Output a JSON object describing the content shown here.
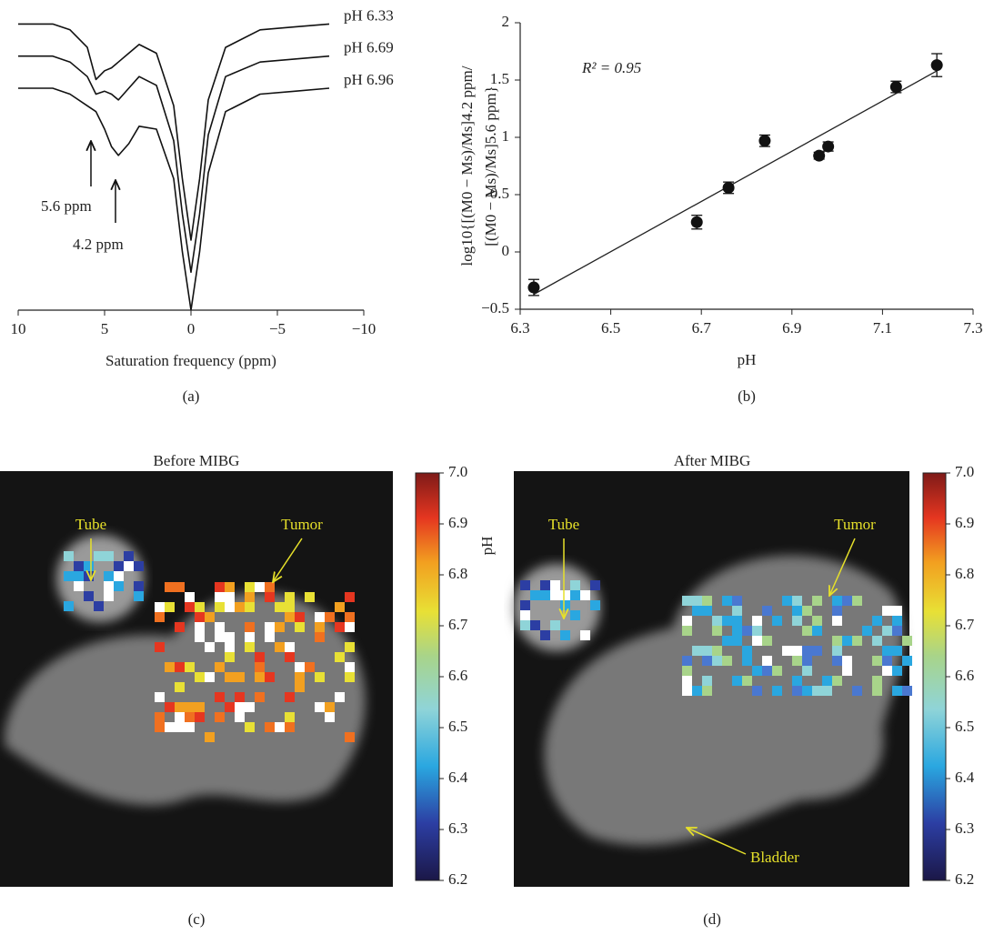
{
  "chart_data": [
    {
      "type": "line",
      "xlabel": "Saturation frequency (ppm)",
      "caption": "(a)",
      "xlim": [
        10,
        -10
      ],
      "ylim": [
        0,
        1
      ],
      "xticks": [
        10,
        5,
        0,
        {
          "value": -5,
          "label": "−5"
        },
        {
          "value": -10,
          "label": "−10"
        }
      ],
      "x": [
        10,
        8,
        7,
        6,
        5.5,
        5,
        4.6,
        4.2,
        3.6,
        3,
        2,
        1,
        0.5,
        0,
        -0.5,
        -1,
        -2,
        -4,
        -6,
        -8
      ],
      "series": [
        {
          "name": "pH 6.33",
          "color": "#111111",
          "values": [
            0.98,
            0.98,
            0.96,
            0.9,
            0.79,
            0.82,
            0.83,
            0.85,
            0.88,
            0.91,
            0.88,
            0.7,
            0.45,
            0.24,
            0.45,
            0.72,
            0.9,
            0.96,
            0.97,
            0.98
          ]
        },
        {
          "name": "pH 6.69",
          "color": "#111111",
          "values": [
            0.87,
            0.87,
            0.85,
            0.8,
            0.74,
            0.75,
            0.74,
            0.72,
            0.76,
            0.8,
            0.77,
            0.58,
            0.33,
            0.13,
            0.33,
            0.6,
            0.8,
            0.85,
            0.86,
            0.87
          ]
        },
        {
          "name": "pH 6.96",
          "color": "#111111",
          "values": [
            0.76,
            0.76,
            0.74,
            0.7,
            0.68,
            0.62,
            0.56,
            0.53,
            0.57,
            0.63,
            0.62,
            0.45,
            0.2,
            0.0,
            0.2,
            0.47,
            0.68,
            0.74,
            0.75,
            0.76
          ]
        }
      ],
      "annotations": [
        "5.6 ppm",
        "4.2 ppm"
      ]
    },
    {
      "type": "scatter",
      "xlabel": "pH",
      "caption": "(b)",
      "ylabel": [
        "log10{[(M0 − Ms)/Ms]4.2 ppm/",
        "[(M0 − Ms)/Ms]5.6 ppm}"
      ],
      "annotation": "R² = 0.95",
      "xlim": [
        6.3,
        7.3
      ],
      "ylim": [
        -0.5,
        2
      ],
      "xticks": [
        6.3,
        6.5,
        6.7,
        6.9,
        7.1,
        7.3
      ],
      "yticks": [
        {
          "value": -0.5,
          "label": "−0.5"
        },
        0,
        0.5,
        1,
        1.5,
        2
      ],
      "x": [
        6.33,
        6.69,
        6.76,
        6.84,
        6.96,
        6.98,
        7.13,
        7.22
      ],
      "values": [
        -0.31,
        0.26,
        0.56,
        0.97,
        0.84,
        0.92,
        1.44,
        1.63
      ],
      "errors": [
        0.07,
        0.06,
        0.05,
        0.05,
        0.03,
        0.04,
        0.05,
        0.1
      ],
      "color": "#111111",
      "fit": {
        "x": [
          6.33,
          7.22
        ],
        "values": [
          -0.37,
          1.58
        ]
      }
    },
    {
      "type": "image",
      "title": "Before MIBG",
      "caption": "(c)",
      "colorbar_label": "pH",
      "clim": [
        6.2,
        7.0
      ],
      "cticks": [
        {
          "value": 7,
          "label": "7.0"
        },
        6.9,
        6.8,
        6.7,
        6.6,
        6.5,
        6.4,
        6.3,
        6.2
      ],
      "annotations": [
        "Tube",
        "Tumor"
      ]
    },
    {
      "type": "image",
      "title": "After MIBG",
      "caption": "(d)",
      "clim": [
        6.2,
        7.0
      ],
      "cticks": [
        {
          "value": 7,
          "label": "7.0"
        },
        6.9,
        6.8,
        6.7,
        6.6,
        6.5,
        6.4,
        6.3,
        6.2
      ],
      "annotations": [
        "Tube",
        "Tumor",
        "Bladder"
      ]
    }
  ]
}
